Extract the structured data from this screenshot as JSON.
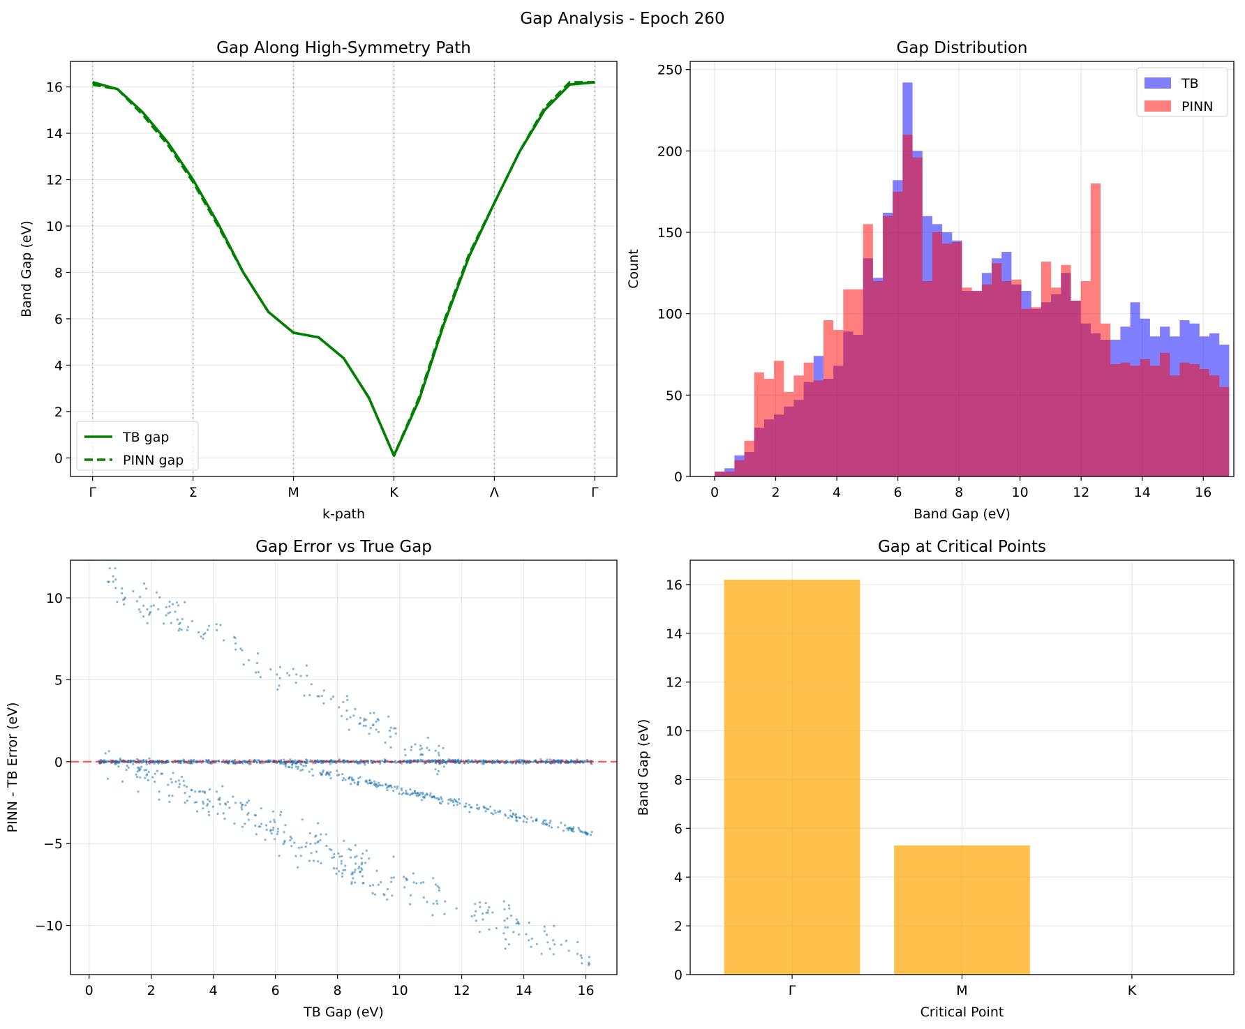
{
  "figure": {
    "title": "Gap Analysis - Epoch 260"
  },
  "colors": {
    "tb_line": "#008000",
    "tb_hist": "#0000ff",
    "pinn_hist": "#ff0000",
    "scatter": "#1f77b4",
    "zero_line": "#ff0000",
    "bar": "#ffa500",
    "symmetry_lines": "#808080"
  },
  "chart_data": [
    {
      "id": "path",
      "type": "line",
      "title": "Gap Along High-Symmetry Path",
      "xlabel": "k-path",
      "ylabel": "Band Gap (eV)",
      "ylim": [
        -0.8,
        17.1
      ],
      "yticks": [
        0,
        2,
        4,
        6,
        8,
        10,
        12,
        14,
        16
      ],
      "xticks": [
        "Γ",
        "Σ",
        "M",
        "K",
        "Λ",
        "Γ"
      ],
      "grid": true,
      "legend": {
        "position": "lower left",
        "entries": [
          "TB gap",
          "PINN gap"
        ]
      },
      "series": [
        {
          "name": "TB gap",
          "style": "solid",
          "x": [
            0,
            0.25,
            0.5,
            0.75,
            1,
            1.25,
            1.5,
            1.75,
            2,
            2.25,
            2.5,
            2.75,
            3,
            3.25,
            3.5,
            3.75,
            4,
            4.25,
            4.5,
            4.75,
            5
          ],
          "y": [
            16.2,
            15.9,
            14.9,
            13.6,
            12.0,
            10.1,
            8.0,
            6.3,
            5.4,
            5.2,
            4.3,
            2.6,
            0.1,
            2.5,
            5.8,
            8.7,
            11.0,
            13.2,
            15.0,
            16.1,
            16.2
          ]
        },
        {
          "name": "PINN gap",
          "style": "dashed",
          "x": [
            0,
            0.25,
            0.5,
            0.75,
            1,
            1.25,
            1.5,
            1.75,
            2,
            2.25,
            2.5,
            2.75,
            3,
            3.25,
            3.5,
            3.75,
            4,
            4.25,
            4.5,
            4.75,
            5
          ],
          "y": [
            16.1,
            15.9,
            14.8,
            13.5,
            11.9,
            10.0,
            8.0,
            6.3,
            5.4,
            5.2,
            4.3,
            2.6,
            0.1,
            2.6,
            5.9,
            8.8,
            11.0,
            13.2,
            15.1,
            16.2,
            16.2
          ]
        }
      ]
    },
    {
      "id": "dist",
      "type": "bar",
      "title": "Gap Distribution",
      "xlabel": "Band Gap (eV)",
      "ylabel": "Count",
      "xlim": [
        -0.8,
        17.0
      ],
      "ylim": [
        0,
        255
      ],
      "xticks": [
        0,
        2,
        4,
        6,
        8,
        10,
        12,
        14,
        16
      ],
      "yticks": [
        0,
        50,
        100,
        150,
        200,
        250
      ],
      "grid": true,
      "legend": {
        "position": "upper right",
        "entries": [
          "TB",
          "PINN"
        ]
      },
      "bin_start": 0.0,
      "bin_width": 0.324,
      "series": [
        {
          "name": "TB",
          "alpha": 0.5,
          "values": [
            3,
            5,
            13,
            15,
            30,
            35,
            38,
            43,
            47,
            58,
            74,
            60,
            68,
            89,
            87,
            134,
            122,
            162,
            182,
            242,
            200,
            160,
            155,
            150,
            145,
            114,
            114,
            125,
            134,
            138,
            118,
            114,
            103,
            107,
            112,
            125,
            108,
            94,
            88,
            84,
            84,
            92,
            107,
            97,
            86,
            92,
            86,
            96,
            94,
            86,
            88,
            81
          ]
        },
        {
          "name": "PINN",
          "alpha": 0.5,
          "values": [
            3,
            3,
            10,
            22,
            64,
            60,
            71,
            52,
            62,
            70,
            59,
            96,
            90,
            115,
            115,
            155,
            120,
            160,
            175,
            210,
            196,
            120,
            150,
            143,
            144,
            116,
            114,
            118,
            131,
            120,
            121,
            103,
            104,
            132,
            116,
            130,
            108,
            120,
            180,
            94,
            69,
            70,
            68,
            72,
            68,
            76,
            62,
            70,
            69,
            66,
            62,
            55
          ]
        }
      ]
    },
    {
      "id": "error",
      "type": "scatter",
      "title": "Gap Error vs True Gap",
      "xlabel": "TB Gap (eV)",
      "ylabel": "PINN - TB Error (eV)",
      "xlim": [
        -0.6,
        17.0
      ],
      "ylim": [
        -13.0,
        12.3
      ],
      "xticks": [
        0,
        2,
        4,
        6,
        8,
        10,
        12,
        14,
        16
      ],
      "yticks": [
        -10,
        -5,
        0,
        5,
        10
      ],
      "grid": true,
      "reference_line": {
        "y": 0,
        "style": "dashed"
      },
      "bands": [
        {
          "x_start": 0.3,
          "x_end": 16.2,
          "err_start": 0.0,
          "err_end": 0.0,
          "spread": 0.12,
          "points": 900
        },
        {
          "x_start": 6.0,
          "x_end": 16.2,
          "err_start": 0.0,
          "err_end": -4.4,
          "spread": 0.25,
          "points": 260
        },
        {
          "x_start": 0.6,
          "x_end": 11.5,
          "err_start": 11.0,
          "err_end": 0.0,
          "spread": 1.2,
          "points": 170
        },
        {
          "x_start": 1.5,
          "x_end": 16.2,
          "err_start": -0.5,
          "err_end": -12.0,
          "spread": 1.3,
          "points": 220
        },
        {
          "x_start": 0.5,
          "x_end": 10.0,
          "err_start": 0.5,
          "err_end": -8.0,
          "spread": 1.2,
          "points": 120
        }
      ]
    },
    {
      "id": "critical",
      "type": "bar",
      "title": "Gap at Critical Points",
      "xlabel": "Critical Point",
      "ylabel": "Band Gap (eV)",
      "ylim": [
        0,
        17.0
      ],
      "yticks": [
        0,
        2,
        4,
        6,
        8,
        10,
        12,
        14,
        16
      ],
      "grid": true,
      "categories": [
        "Γ",
        "M",
        "K"
      ],
      "values": [
        16.2,
        5.3,
        0.0
      ]
    }
  ]
}
